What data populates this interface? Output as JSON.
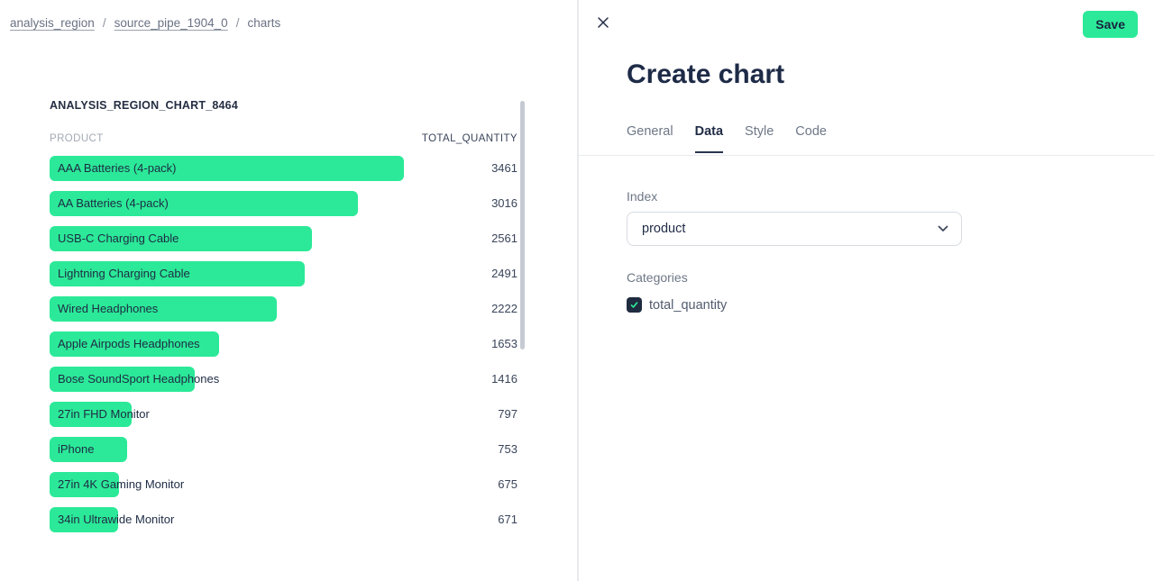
{
  "breadcrumb": {
    "separator": "/",
    "items": [
      {
        "label": "analysis_region",
        "underlined": true
      },
      {
        "label": "source_pipe_1904_0",
        "underlined": true
      },
      {
        "label": "charts",
        "underlined": false
      }
    ]
  },
  "chart_data": {
    "type": "bar",
    "orientation": "horizontal",
    "title": "ANALYSIS_REGION_CHART_8464",
    "xlabel": "PRODUCT",
    "ylabel": "TOTAL_QUANTITY",
    "categories": [
      "AAA Batteries (4-pack)",
      "AA Batteries (4-pack)",
      "USB-C Charging Cable",
      "Lightning Charging Cable",
      "Wired Headphones",
      "Apple Airpods Headphones",
      "Bose SoundSport Headphones",
      "27in FHD Monitor",
      "iPhone",
      "27in 4K Gaming Monitor",
      "34in Ultrawide Monitor"
    ],
    "values": [
      3461,
      3016,
      2561,
      2491,
      2222,
      1653,
      1416,
      797,
      753,
      675,
      671
    ],
    "xlim": [
      0,
      3461
    ],
    "bar_color": "#2BE998",
    "grid": false,
    "legend": false
  },
  "panel": {
    "title": "Create chart",
    "save_label": "Save",
    "close_icon": "x-close",
    "tabs": [
      {
        "label": "General",
        "active": false
      },
      {
        "label": "Data",
        "active": true
      },
      {
        "label": "Style",
        "active": false
      },
      {
        "label": "Code",
        "active": false
      }
    ],
    "index_field": {
      "label": "Index",
      "value": "product"
    },
    "categories_field": {
      "label": "Categories",
      "options": [
        {
          "label": "total_quantity",
          "checked": true
        }
      ]
    }
  },
  "colors": {
    "accent_green": "#2BE998",
    "dark_navy": "#1F2B45",
    "muted_text": "#6E7787",
    "value_text": "#39445A"
  }
}
